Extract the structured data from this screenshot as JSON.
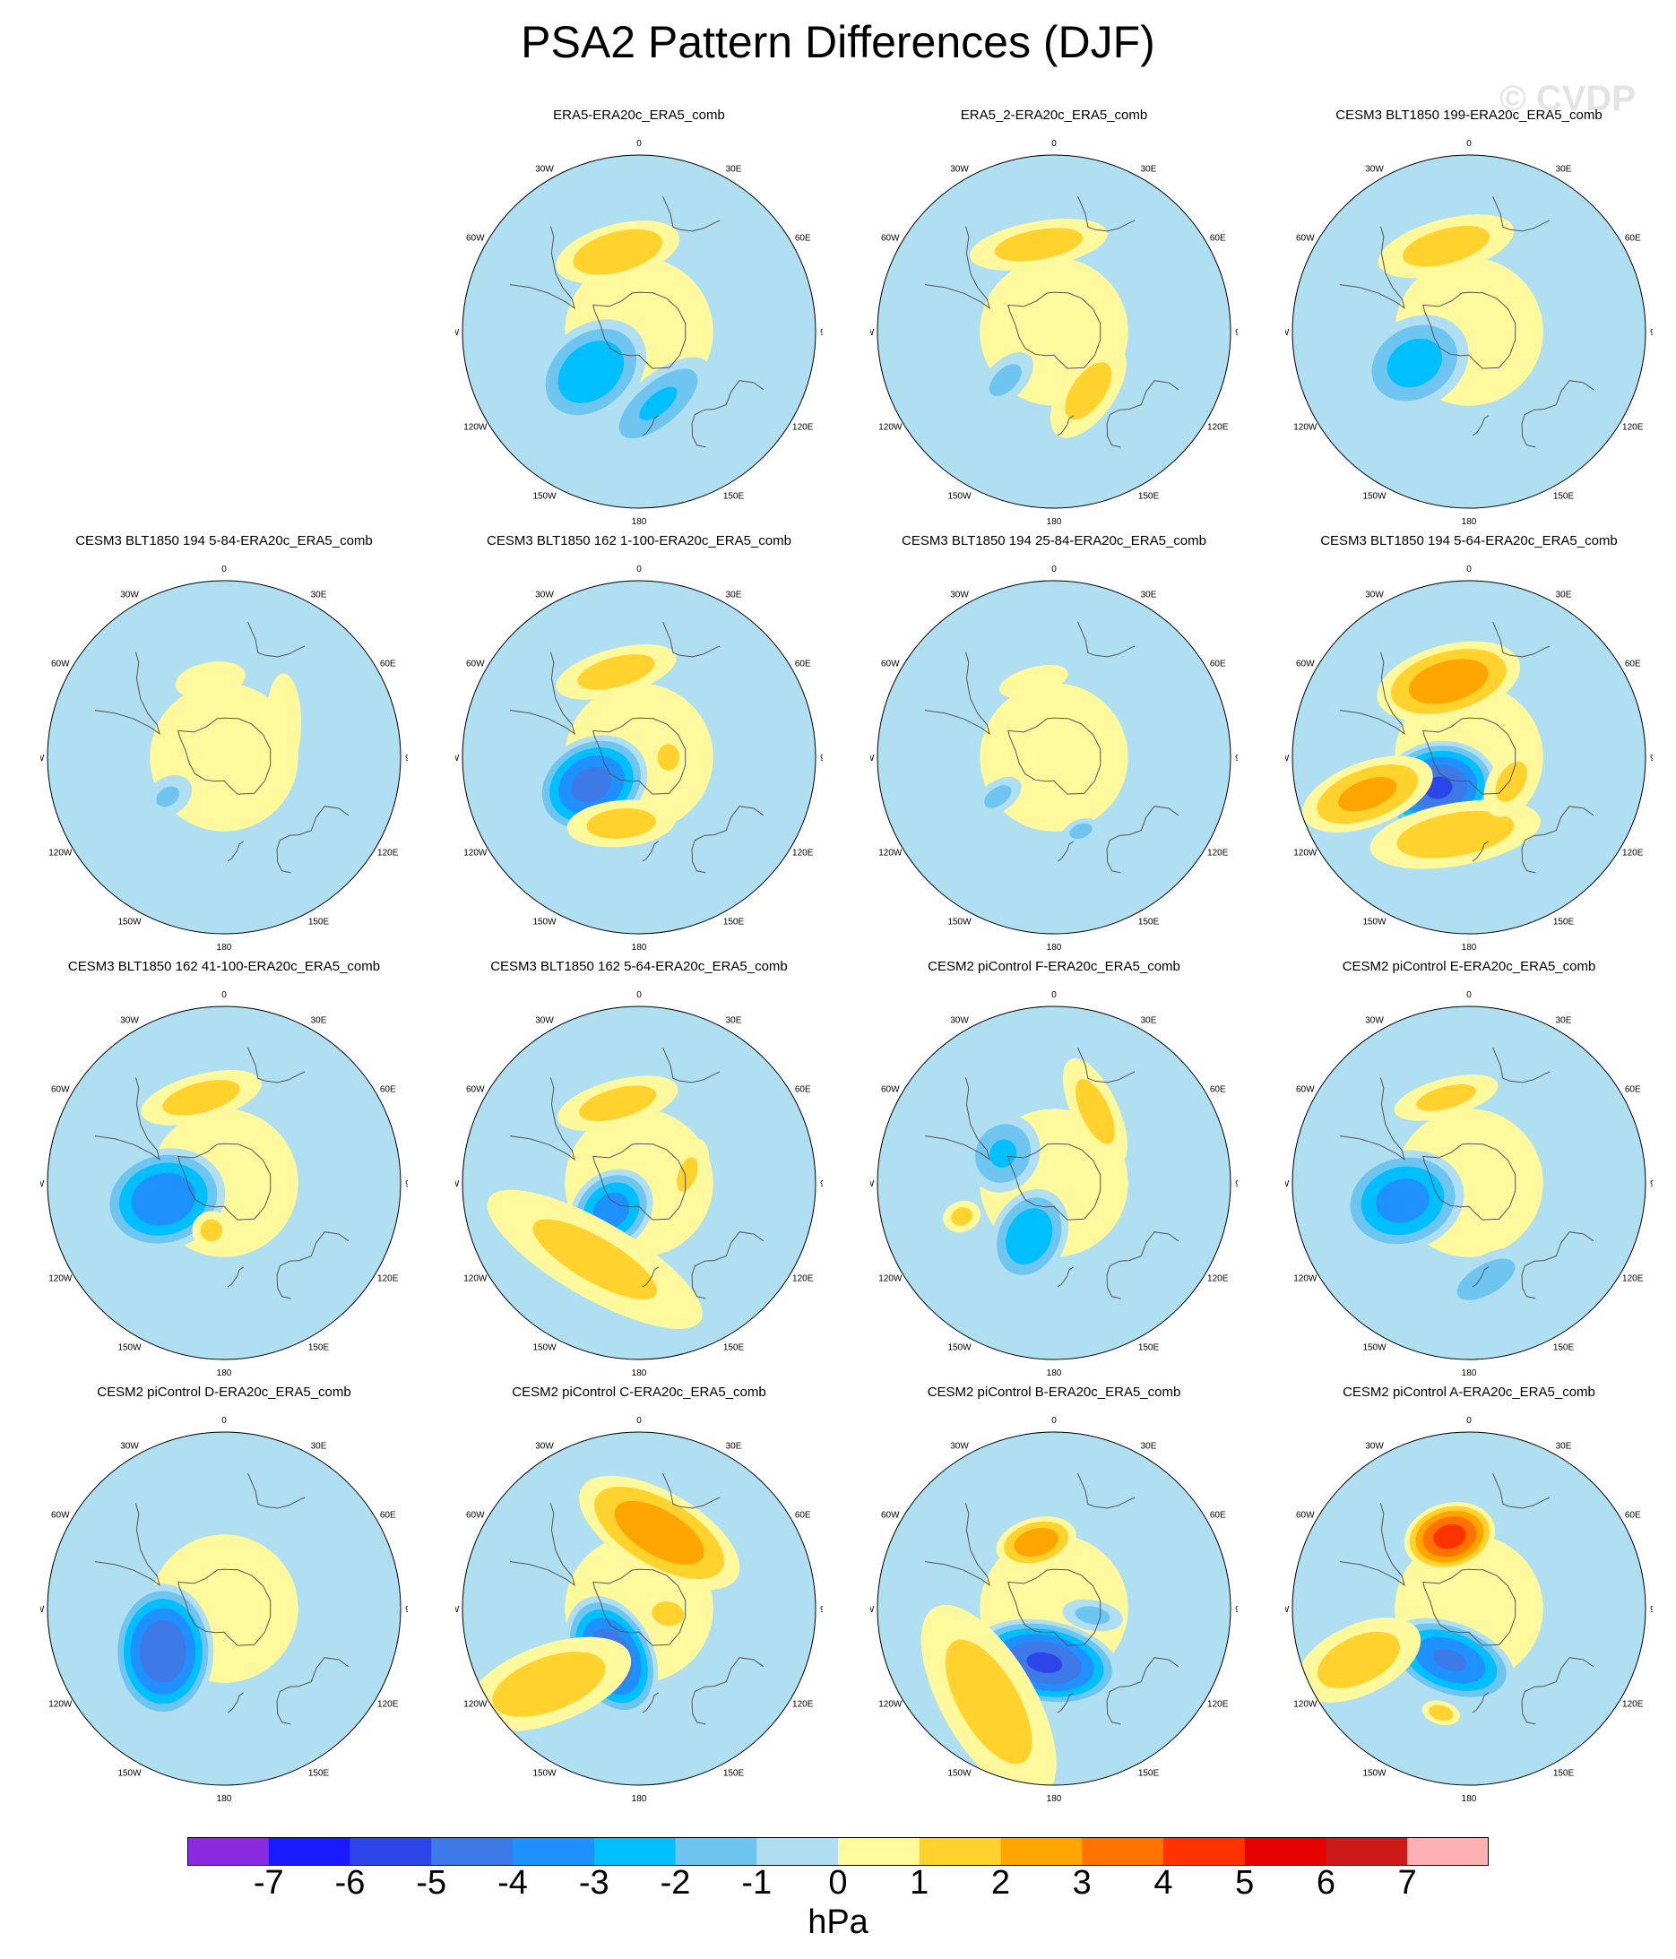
{
  "title": "PSA2 Pattern Differences (DJF)",
  "watermark": "© CVDP",
  "units": "hPa",
  "lon_labels": [
    "0",
    "30E",
    "60E",
    "90E",
    "120E",
    "150E",
    "180",
    "150W",
    "120W",
    "90W",
    "60W",
    "30W"
  ],
  "colorbar": {
    "colors": [
      "#8a2be2",
      "#1a1aff",
      "#2b45e8",
      "#3d7ae8",
      "#1e90ff",
      "#00bfff",
      "#6ec6f0",
      "#b0dff2",
      "#fff99e",
      "#ffd22e",
      "#ffa500",
      "#ff7300",
      "#ff3300",
      "#e60000",
      "#cc1a1a",
      "#ffb0b0"
    ],
    "labels": [
      "-7",
      "-6",
      "-5",
      "-4",
      "-3",
      "-2",
      "-1",
      "0",
      "1",
      "2",
      "3",
      "4",
      "5",
      "6",
      "7"
    ]
  },
  "panels": [
    {
      "title": "ERA5-ERA20c_ERA5_comb",
      "blobs": [
        {
          "lon": 345,
          "lat": -48,
          "rx": 0.16,
          "ry": 0.07,
          "rot": 0,
          "v": 2
        },
        {
          "lon": 230,
          "lat": -58,
          "rx": 0.11,
          "ry": 0.15,
          "rot": 0,
          "v": -3
        },
        {
          "lon": 165,
          "lat": -52,
          "rx": 0.16,
          "ry": 0.07,
          "rot": -25,
          "v": -2.2
        }
      ]
    },
    {
      "title": "ERA5_2-ERA20c_ERA5_comb",
      "blobs": [
        {
          "lon": 350,
          "lat": -45,
          "rx": 0.18,
          "ry": 0.06,
          "rot": 0,
          "v": 1.6
        },
        {
          "lon": 225,
          "lat": -55,
          "rx": 0.05,
          "ry": 0.09,
          "rot": 0,
          "v": -1.4
        },
        {
          "lon": 150,
          "lat": -55,
          "rx": 0.14,
          "ry": 0.07,
          "rot": -25,
          "v": 1.5
        }
      ]
    },
    {
      "title": "CESM3 BLT1850 199-ERA20c_ERA5_comb",
      "blobs": [
        {
          "lon": 345,
          "lat": -45,
          "rx": 0.18,
          "ry": 0.07,
          "rot": 0,
          "v": 1.6
        },
        {
          "lon": 240,
          "lat": -58,
          "rx": 0.11,
          "ry": 0.14,
          "rot": 0,
          "v": -2.6
        }
      ]
    },
    {
      "title": "CESM3 BLT1850 194 5-84-ERA20c_ERA5_comb",
      "blobs": [
        {
          "lon": 350,
          "lat": -50,
          "rx": 0.1,
          "ry": 0.05,
          "rot": 0,
          "v": 0.8
        },
        {
          "lon": 235,
          "lat": -55,
          "rx": 0.05,
          "ry": 0.07,
          "rot": 0,
          "v": -1.2
        },
        {
          "lon": 60,
          "lat": -55,
          "rx": 0.14,
          "ry": 0.05,
          "rot": 30,
          "v": 0.8
        }
      ]
    },
    {
      "title": "CESM3 BLT1850 162 1-100-ERA20c_ERA5_comb",
      "blobs": [
        {
          "lon": 345,
          "lat": -45,
          "rx": 0.16,
          "ry": 0.06,
          "rot": 0,
          "v": 1.6
        },
        {
          "lon": 240,
          "lat": -62,
          "rx": 0.11,
          "ry": 0.14,
          "rot": 0,
          "v": -4.5
        },
        {
          "lon": 195,
          "lat": -55,
          "rx": 0.14,
          "ry": 0.06,
          "rot": -20,
          "v": 1.6
        },
        {
          "lon": 90,
          "lat": -75,
          "rx": 0.06,
          "ry": 0.05,
          "rot": 0,
          "v": 1.4
        }
      ]
    },
    {
      "title": "CESM3 BLT1850 194 25-84-ERA20c_ERA5_comb",
      "blobs": [
        {
          "lon": 345,
          "lat": -50,
          "rx": 0.1,
          "ry": 0.04,
          "rot": 0,
          "v": 0.8
        },
        {
          "lon": 235,
          "lat": -55,
          "rx": 0.04,
          "ry": 0.07,
          "rot": 0,
          "v": -1.4
        },
        {
          "lon": 160,
          "lat": -50,
          "rx": 0.05,
          "ry": 0.03,
          "rot": 0,
          "v": -1.5
        }
      ]
    },
    {
      "title": "CESM3 BLT1850 194 5-64-ERA20c_ERA5_comb",
      "blobs": [
        {
          "lon": 345,
          "lat": -50,
          "rx": 0.18,
          "ry": 0.09,
          "rot": 0,
          "v": 2.8
        },
        {
          "lon": 225,
          "lat": -68,
          "rx": 0.11,
          "ry": 0.14,
          "rot": 35,
          "v": -5.2
        },
        {
          "lon": 250,
          "lat": -35,
          "rx": 0.08,
          "ry": 0.17,
          "rot": 0,
          "v": 2.4
        },
        {
          "lon": 190,
          "lat": -50,
          "rx": 0.22,
          "ry": 0.08,
          "rot": -20,
          "v": 1.8
        },
        {
          "lon": 120,
          "lat": -65,
          "rx": 0.1,
          "ry": 0.06,
          "rot": 0,
          "v": 1.4
        }
      ]
    },
    {
      "title": "CESM3 BLT1850 162 41-100-ERA20c_ERA5_comb",
      "blobs": [
        {
          "lon": 345,
          "lat": -45,
          "rx": 0.16,
          "ry": 0.06,
          "rot": 0,
          "v": 1.6
        },
        {
          "lon": 255,
          "lat": -58,
          "rx": 0.12,
          "ry": 0.15,
          "rot": 0,
          "v": -4
        },
        {
          "lon": 195,
          "lat": -65,
          "rx": 0.05,
          "ry": 0.05,
          "rot": 0,
          "v": 1.4
        }
      ]
    },
    {
      "title": "CESM3 BLT1850 162 5-64-ERA20c_ERA5_comb",
      "blobs": [
        {
          "lon": 345,
          "lat": -48,
          "rx": 0.16,
          "ry": 0.06,
          "rot": 0,
          "v": 1.6
        },
        {
          "lon": 225,
          "lat": -70,
          "rx": 0.09,
          "ry": 0.11,
          "rot": 0,
          "v": -3.6
        },
        {
          "lon": 210,
          "lat": -45,
          "rx": 0.32,
          "ry": 0.1,
          "rot": 0,
          "v": 1.4
        },
        {
          "lon": 80,
          "lat": -65,
          "rx": 0.1,
          "ry": 0.05,
          "rot": 30,
          "v": 1.2
        }
      ]
    },
    {
      "title": "CESM2 piControl F-ERA20c_ERA5_comb",
      "blobs": [
        {
          "lon": 300,
          "lat": -60,
          "rx": 0.1,
          "ry": 0.09,
          "rot": 0,
          "v": -2.2
        },
        {
          "lon": 205,
          "lat": -60,
          "rx": 0.09,
          "ry": 0.12,
          "rot": 0,
          "v": -3
        },
        {
          "lon": 30,
          "lat": -48,
          "rx": 0.15,
          "ry": 0.06,
          "rot": 35,
          "v": 1.5
        },
        {
          "lon": 250,
          "lat": -40,
          "rx": 0.04,
          "ry": 0.05,
          "rot": 0,
          "v": 1.4
        }
      ]
    },
    {
      "title": "CESM2 piControl E-ERA20c_ERA5_comb",
      "blobs": [
        {
          "lon": 345,
          "lat": -45,
          "rx": 0.14,
          "ry": 0.05,
          "rot": 0,
          "v": 1.4
        },
        {
          "lon": 255,
          "lat": -55,
          "rx": 0.12,
          "ry": 0.15,
          "rot": 0,
          "v": -3.6
        },
        {
          "lon": 170,
          "lat": -40,
          "rx": 0.13,
          "ry": 0.06,
          "rot": -20,
          "v": -1.6
        }
      ]
    },
    {
      "title": "CESM2 piControl D-ERA20c_ERA5_comb",
      "blobs": [
        {
          "lon": 235,
          "lat": -52,
          "rx": 0.16,
          "ry": 0.12,
          "rot": 35,
          "v": -5
        }
      ]
    },
    {
      "title": "CESM2 piControl C-ERA20c_ERA5_comb",
      "blobs": [
        {
          "lon": 15,
          "lat": -50,
          "rx": 0.22,
          "ry": 0.1,
          "rot": 15,
          "v": 2.8
        },
        {
          "lon": 210,
          "lat": -62,
          "rx": 0.15,
          "ry": 0.1,
          "rot": 35,
          "v": -5
        },
        {
          "lon": 230,
          "lat": -30,
          "rx": 0.1,
          "ry": 0.22,
          "rot": 20,
          "v": 1.8
        },
        {
          "lon": 100,
          "lat": -75,
          "rx": 0.06,
          "ry": 0.08,
          "rot": 0,
          "v": 1.3
        }
      ]
    },
    {
      "title": "CESM2 piControl B-ERA20c_ERA5_comb",
      "blobs": [
        {
          "lon": 345,
          "lat": -55,
          "rx": 0.1,
          "ry": 0.06,
          "rot": 0,
          "v": 2.8
        },
        {
          "lon": 190,
          "lat": -62,
          "rx": 0.18,
          "ry": 0.1,
          "rot": 0,
          "v": -5.2
        },
        {
          "lon": 215,
          "lat": -32,
          "rx": 0.28,
          "ry": 0.12,
          "rot": 25,
          "v": 1.6
        },
        {
          "lon": 100,
          "lat": -70,
          "rx": 0.04,
          "ry": 0.08,
          "rot": 0,
          "v": -1.4
        }
      ]
    },
    {
      "title": "CESM2 piControl A-ERA20c_ERA5_comb",
      "blobs": [
        {
          "lon": 345,
          "lat": -52,
          "rx": 0.11,
          "ry": 0.08,
          "rot": 0,
          "v": 4.5
        },
        {
          "lon": 200,
          "lat": -62,
          "rx": 0.16,
          "ry": 0.09,
          "rot": 0,
          "v": -4.2
        },
        {
          "lon": 245,
          "lat": -28,
          "rx": 0.09,
          "ry": 0.17,
          "rot": 0,
          "v": 1.7
        },
        {
          "lon": 195,
          "lat": -35,
          "rx": 0.05,
          "ry": 0.03,
          "rot": 0,
          "v": 1.6
        }
      ]
    }
  ]
}
